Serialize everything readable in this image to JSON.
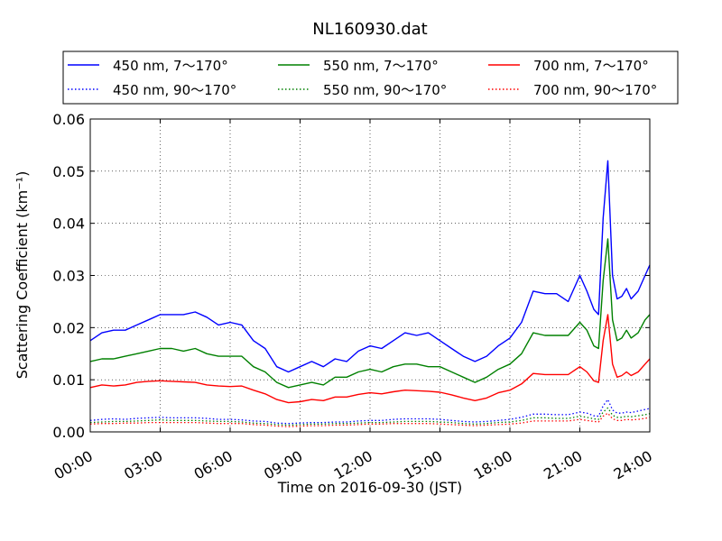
{
  "chart_data": {
    "type": "line",
    "title": "NL160930.dat",
    "xlabel": "Time on 2016-09-30 (JST)",
    "ylabel": "Scattering Coefficient (km⁻¹)",
    "x_unit": "hours",
    "xlim": [
      0,
      24
    ],
    "ylim": [
      0,
      0.06
    ],
    "xticks": [
      0,
      3,
      6,
      9,
      12,
      15,
      18,
      21,
      24
    ],
    "xtick_labels": [
      "00:00",
      "03:00",
      "06:00",
      "09:00",
      "12:00",
      "15:00",
      "18:00",
      "21:00",
      "24:00"
    ],
    "yticks": [
      0,
      0.01,
      0.02,
      0.03,
      0.04,
      0.05,
      0.06
    ],
    "ytick_labels": [
      "0.00",
      "0.01",
      "0.02",
      "0.03",
      "0.04",
      "0.05",
      "0.06"
    ],
    "grid": true,
    "legend_position": "top",
    "x": [
      0,
      0.5,
      1,
      1.5,
      2,
      2.5,
      3,
      3.5,
      4,
      4.5,
      5,
      5.5,
      6,
      6.5,
      7,
      7.5,
      8,
      8.5,
      9,
      9.5,
      10,
      10.5,
      11,
      11.5,
      12,
      12.5,
      13,
      13.5,
      14,
      14.5,
      15,
      15.5,
      16,
      16.5,
      17,
      17.5,
      18,
      18.5,
      19,
      19.5,
      20,
      20.5,
      21,
      21.3,
      21.6,
      21.8,
      22,
      22.2,
      22.4,
      22.6,
      22.8,
      23,
      23.2,
      23.5,
      23.8,
      24
    ],
    "series": [
      {
        "name": "450 nm, 7～170°",
        "color": "#0000ff",
        "style": "solid",
        "values": [
          0.0175,
          0.019,
          0.0195,
          0.0195,
          0.0205,
          0.0215,
          0.0225,
          0.0225,
          0.0225,
          0.023,
          0.022,
          0.0205,
          0.021,
          0.0205,
          0.0175,
          0.016,
          0.0125,
          0.0115,
          0.0125,
          0.0135,
          0.0125,
          0.014,
          0.0135,
          0.0155,
          0.0165,
          0.016,
          0.0175,
          0.019,
          0.0185,
          0.019,
          0.0175,
          0.016,
          0.0145,
          0.0135,
          0.0145,
          0.0165,
          0.018,
          0.021,
          0.027,
          0.0265,
          0.0265,
          0.025,
          0.03,
          0.027,
          0.0235,
          0.0225,
          0.041,
          0.052,
          0.03,
          0.0255,
          0.026,
          0.0275,
          0.0255,
          0.027,
          0.03,
          0.032
        ]
      },
      {
        "name": "450 nm, 90～170°",
        "color": "#0000ff",
        "style": "dotted",
        "values": [
          0.0022,
          0.0024,
          0.0025,
          0.0024,
          0.0026,
          0.0027,
          0.0028,
          0.0027,
          0.0027,
          0.0027,
          0.0026,
          0.0024,
          0.0024,
          0.0023,
          0.0021,
          0.002,
          0.0017,
          0.0016,
          0.0017,
          0.0018,
          0.0018,
          0.0019,
          0.0019,
          0.0021,
          0.0022,
          0.0022,
          0.0024,
          0.0025,
          0.0025,
          0.0025,
          0.0024,
          0.0022,
          0.002,
          0.0019,
          0.002,
          0.0022,
          0.0024,
          0.0028,
          0.0034,
          0.0034,
          0.0033,
          0.0033,
          0.0038,
          0.0036,
          0.0031,
          0.003,
          0.005,
          0.0062,
          0.0042,
          0.0036,
          0.0036,
          0.0038,
          0.0037,
          0.004,
          0.0043,
          0.0045
        ]
      },
      {
        "name": "550 nm, 7～170°",
        "color": "#008000",
        "style": "solid",
        "values": [
          0.0135,
          0.014,
          0.014,
          0.0145,
          0.015,
          0.0155,
          0.016,
          0.016,
          0.0155,
          0.016,
          0.015,
          0.0145,
          0.0145,
          0.0145,
          0.0125,
          0.0115,
          0.0095,
          0.0085,
          0.009,
          0.0095,
          0.009,
          0.0105,
          0.0105,
          0.0115,
          0.012,
          0.0115,
          0.0125,
          0.013,
          0.013,
          0.0125,
          0.0125,
          0.0115,
          0.0105,
          0.0095,
          0.0105,
          0.012,
          0.013,
          0.015,
          0.019,
          0.0185,
          0.0185,
          0.0185,
          0.021,
          0.0195,
          0.0165,
          0.016,
          0.029,
          0.037,
          0.0215,
          0.0175,
          0.018,
          0.0195,
          0.018,
          0.019,
          0.0215,
          0.0225
        ]
      },
      {
        "name": "550 nm, 90～170°",
        "color": "#008000",
        "style": "dotted",
        "values": [
          0.0018,
          0.0019,
          0.002,
          0.002,
          0.0021,
          0.0022,
          0.0023,
          0.0022,
          0.0022,
          0.0022,
          0.0021,
          0.002,
          0.002,
          0.0019,
          0.0017,
          0.0016,
          0.0014,
          0.0013,
          0.0014,
          0.0015,
          0.0015,
          0.0016,
          0.0016,
          0.0017,
          0.0018,
          0.0018,
          0.0019,
          0.002,
          0.002,
          0.002,
          0.0019,
          0.0018,
          0.0016,
          0.0015,
          0.0016,
          0.0018,
          0.0019,
          0.0022,
          0.0027,
          0.0027,
          0.0026,
          0.0026,
          0.003,
          0.0028,
          0.0025,
          0.0024,
          0.0038,
          0.0046,
          0.0032,
          0.0028,
          0.0028,
          0.003,
          0.0029,
          0.0031,
          0.0033,
          0.0035
        ]
      },
      {
        "name": "700 nm, 7～170°",
        "color": "#ff0000",
        "style": "solid",
        "values": [
          0.0085,
          0.009,
          0.0088,
          0.009,
          0.0095,
          0.0097,
          0.0098,
          0.0097,
          0.0096,
          0.0095,
          0.009,
          0.0088,
          0.0087,
          0.0088,
          0.008,
          0.0073,
          0.0062,
          0.0056,
          0.0058,
          0.0062,
          0.006,
          0.0067,
          0.0067,
          0.0072,
          0.0075,
          0.0073,
          0.0077,
          0.008,
          0.0079,
          0.0078,
          0.0076,
          0.0071,
          0.0065,
          0.006,
          0.0065,
          0.0075,
          0.008,
          0.0092,
          0.0112,
          0.011,
          0.011,
          0.011,
          0.0125,
          0.0115,
          0.0098,
          0.0095,
          0.0175,
          0.0225,
          0.013,
          0.0105,
          0.0108,
          0.0115,
          0.0108,
          0.0115,
          0.013,
          0.014
        ]
      },
      {
        "name": "700 nm, 90～170°",
        "color": "#ff0000",
        "style": "dotted",
        "values": [
          0.0015,
          0.0016,
          0.0016,
          0.0017,
          0.0017,
          0.0018,
          0.0018,
          0.0018,
          0.0018,
          0.0018,
          0.0017,
          0.0016,
          0.0016,
          0.0016,
          0.0014,
          0.0013,
          0.0011,
          0.001,
          0.0011,
          0.0012,
          0.0012,
          0.0013,
          0.0013,
          0.0014,
          0.0015,
          0.0015,
          0.0016,
          0.0016,
          0.0016,
          0.0016,
          0.0015,
          0.0014,
          0.0013,
          0.0012,
          0.0013,
          0.0014,
          0.0015,
          0.0017,
          0.0021,
          0.0021,
          0.0021,
          0.0021,
          0.0024,
          0.0022,
          0.002,
          0.0019,
          0.003,
          0.0036,
          0.0025,
          0.0022,
          0.0022,
          0.0024,
          0.0023,
          0.0024,
          0.0026,
          0.0028
        ]
      }
    ]
  }
}
